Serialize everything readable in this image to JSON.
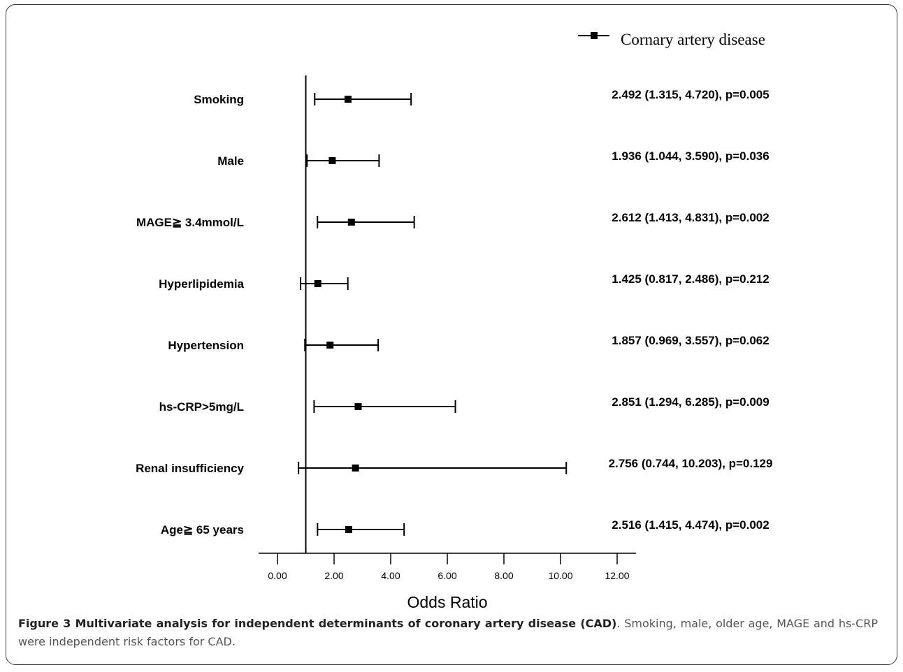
{
  "chart_data": {
    "type": "forest",
    "legend": "Cornary artery disease",
    "xlabel": "Odds Ratio",
    "xlim": [
      0,
      12
    ],
    "xticks": [
      "0.00",
      "2.00",
      "4.00",
      "6.00",
      "8.00",
      "10.00",
      "12.00"
    ],
    "reference_line": 1,
    "rows": [
      {
        "label": "Smoking",
        "or": 2.492,
        "lower": 1.315,
        "upper": 4.72,
        "text": "2.492 (1.315, 4.720), p=0.005"
      },
      {
        "label": "Male",
        "or": 1.936,
        "lower": 1.044,
        "upper": 3.59,
        "text": "1.936 (1.044, 3.590), p=0.036"
      },
      {
        "label": "MAGE≧ 3.4mmol/L",
        "or": 2.612,
        "lower": 1.413,
        "upper": 4.831,
        "text": "2.612 (1.413, 4.831), p=0.002"
      },
      {
        "label": "Hyperlipidemia",
        "or": 1.425,
        "lower": 0.817,
        "upper": 2.486,
        "text": "1.425 (0.817, 2.486), p=0.212"
      },
      {
        "label": "Hypertension",
        "or": 1.857,
        "lower": 0.969,
        "upper": 3.557,
        "text": "1.857 (0.969, 3.557), p=0.062"
      },
      {
        "label": "hs-CRP>5mg/L",
        "or": 2.851,
        "lower": 1.294,
        "upper": 6.285,
        "text": "2.851 (1.294, 6.285), p=0.009"
      },
      {
        "label": "Renal insufficiency",
        "or": 2.756,
        "lower": 0.744,
        "upper": 10.203,
        "text": "2.756 (0.744, 10.203), p=0.129"
      },
      {
        "label": "Age≧ 65 years",
        "or": 2.516,
        "lower": 1.415,
        "upper": 4.474,
        "text": "2.516 (1.415, 4.474), p=0.002"
      }
    ]
  },
  "caption": {
    "bold": "Figure 3 Multivariate analysis for independent determinants of coronary artery disease (CAD)",
    "rest": ". Smoking, male, older age, MAGE and hs-CRP were independent risk factors for CAD."
  }
}
